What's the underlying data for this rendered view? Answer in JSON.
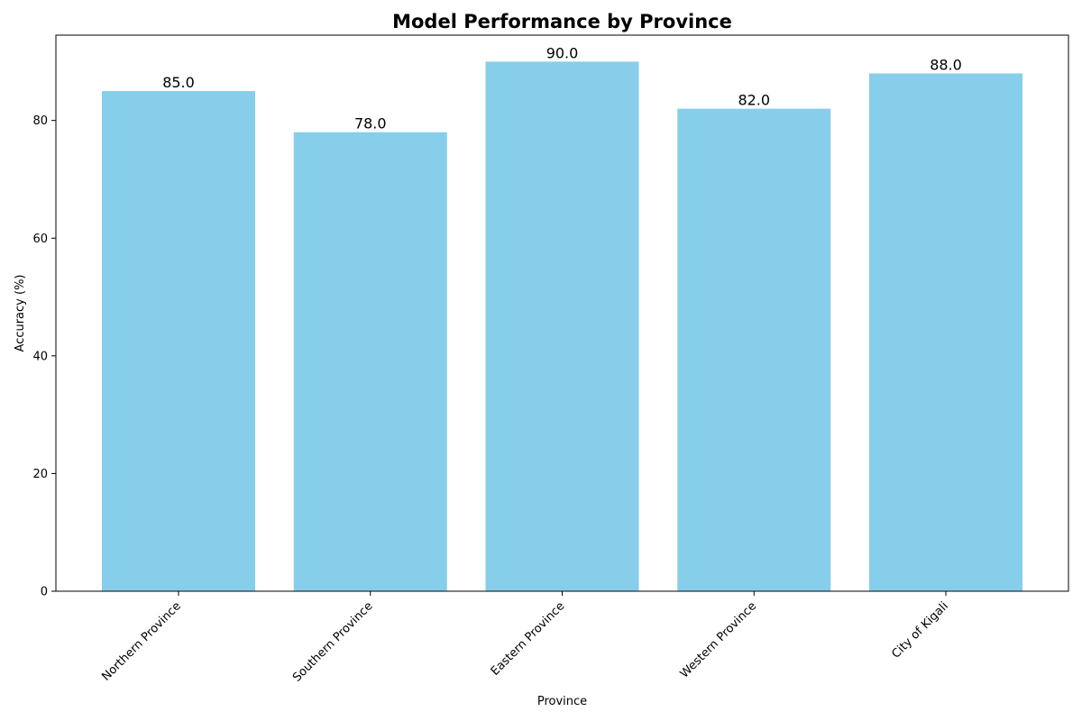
{
  "chart_data": {
    "type": "bar",
    "title": "Model Performance by Province",
    "xlabel": "Province",
    "ylabel": "Accuracy (%)",
    "categories": [
      "Northern Province",
      "Southern Province",
      "Eastern Province",
      "Western Province",
      "City of Kigali"
    ],
    "values": [
      85.0,
      78.0,
      90.0,
      82.0,
      88.0
    ],
    "value_labels": [
      "85.0",
      "78.0",
      "90.0",
      "82.0",
      "88.0"
    ],
    "yticks": [
      0,
      20,
      40,
      60,
      80
    ],
    "ytick_labels": [
      "0",
      "20",
      "40",
      "60",
      "80"
    ],
    "ylim": [
      0,
      94.5
    ],
    "bar_color": "#87ceeb",
    "grid": false,
    "legend": "none"
  }
}
